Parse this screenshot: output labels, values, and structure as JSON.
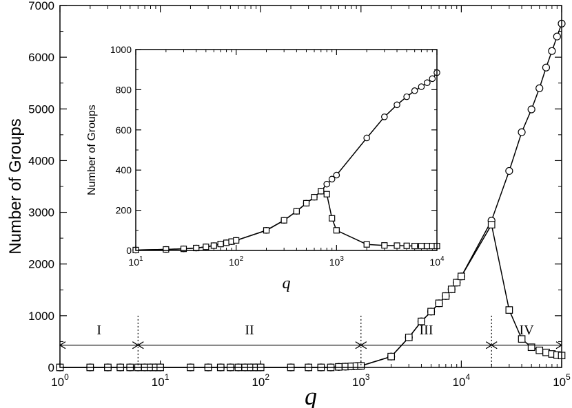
{
  "chart_data": [
    {
      "id": "main",
      "type": "line",
      "xscale": "log",
      "xlabel": "q",
      "ylabel": "Number of Groups",
      "xlim": [
        1,
        100000
      ],
      "ylim": [
        0,
        7000
      ],
      "xticks": [
        {
          "value": 1,
          "base": "10",
          "exp": "0"
        },
        {
          "value": 10,
          "base": "10",
          "exp": "1"
        },
        {
          "value": 100,
          "base": "10",
          "exp": "2"
        },
        {
          "value": 1000,
          "base": "10",
          "exp": "3"
        },
        {
          "value": 10000,
          "base": "10",
          "exp": "4"
        },
        {
          "value": 100000,
          "base": "10",
          "exp": "5"
        }
      ],
      "yticks": [
        "0",
        "1000",
        "2000",
        "3000",
        "4000",
        "5000",
        "6000",
        "7000"
      ],
      "series": [
        {
          "marker": "circle",
          "points": [
            [
              1,
              0
            ],
            [
              2,
              0
            ],
            [
              3,
              0
            ],
            [
              4,
              0
            ],
            [
              5,
              0
            ],
            [
              6,
              0
            ],
            [
              7,
              0
            ],
            [
              8,
              0
            ],
            [
              9,
              0
            ],
            [
              10,
              0
            ],
            [
              20,
              0
            ],
            [
              30,
              0
            ],
            [
              40,
              0
            ],
            [
              50,
              0
            ],
            [
              60,
              0
            ],
            [
              70,
              0
            ],
            [
              80,
              0
            ],
            [
              90,
              0
            ],
            [
              100,
              0
            ],
            [
              200,
              0
            ],
            [
              300,
              0
            ],
            [
              400,
              0
            ],
            [
              500,
              0
            ],
            [
              600,
              10
            ],
            [
              700,
              15
            ],
            [
              800,
              20
            ],
            [
              900,
              25
            ],
            [
              1000,
              30
            ],
            [
              2000,
              210
            ],
            [
              3000,
              580
            ],
            [
              4000,
              890
            ],
            [
              5000,
              1080
            ],
            [
              6000,
              1240
            ],
            [
              7000,
              1380
            ],
            [
              8000,
              1510
            ],
            [
              9000,
              1640
            ],
            [
              10000,
              1760
            ],
            [
              20000,
              2840
            ],
            [
              30000,
              3800
            ],
            [
              40000,
              4550
            ],
            [
              50000,
              4990
            ],
            [
              60000,
              5400
            ],
            [
              70000,
              5800
            ],
            [
              80000,
              6120
            ],
            [
              90000,
              6400
            ],
            [
              100000,
              6650
            ]
          ]
        },
        {
          "marker": "square",
          "points": [
            [
              1,
              0
            ],
            [
              2,
              0
            ],
            [
              3,
              0
            ],
            [
              4,
              0
            ],
            [
              5,
              0
            ],
            [
              6,
              0
            ],
            [
              7,
              0
            ],
            [
              8,
              0
            ],
            [
              9,
              0
            ],
            [
              10,
              0
            ],
            [
              20,
              0
            ],
            [
              30,
              0
            ],
            [
              40,
              0
            ],
            [
              50,
              0
            ],
            [
              60,
              0
            ],
            [
              70,
              0
            ],
            [
              80,
              0
            ],
            [
              90,
              0
            ],
            [
              100,
              0
            ],
            [
              200,
              0
            ],
            [
              300,
              0
            ],
            [
              400,
              0
            ],
            [
              500,
              0
            ],
            [
              600,
              10
            ],
            [
              700,
              15
            ],
            [
              800,
              20
            ],
            [
              900,
              25
            ],
            [
              1000,
              30
            ],
            [
              2000,
              210
            ],
            [
              3000,
              580
            ],
            [
              4000,
              890
            ],
            [
              5000,
              1080
            ],
            [
              6000,
              1240
            ],
            [
              7000,
              1380
            ],
            [
              8000,
              1510
            ],
            [
              9000,
              1640
            ],
            [
              10000,
              1760
            ],
            [
              20000,
              2760
            ],
            [
              30000,
              1110
            ],
            [
              40000,
              550
            ],
            [
              50000,
              390
            ],
            [
              60000,
              330
            ],
            [
              70000,
              290
            ],
            [
              80000,
              260
            ],
            [
              90000,
              240
            ],
            [
              100000,
              230
            ]
          ]
        }
      ],
      "regions": {
        "boundaries": [
          1,
          6,
          1000,
          20000,
          100000
        ],
        "labels": [
          "I",
          "II",
          "III",
          "IV"
        ],
        "arrow_y": 430,
        "label_y": 730
      }
    },
    {
      "id": "inset",
      "type": "line",
      "xscale": "log",
      "xlabel": "q",
      "ylabel": "Number of Groups",
      "xlim": [
        10,
        10000
      ],
      "ylim": [
        0,
        1000
      ],
      "xticks": [
        {
          "value": 10,
          "base": "10",
          "exp": "1"
        },
        {
          "value": 100,
          "base": "10",
          "exp": "2"
        },
        {
          "value": 1000,
          "base": "10",
          "exp": "3"
        },
        {
          "value": 10000,
          "base": "10",
          "exp": "4"
        }
      ],
      "yticks": [
        "0",
        "200",
        "400",
        "600",
        "800",
        "1000"
      ],
      "series": [
        {
          "marker": "circle",
          "points": [
            [
              10,
              2
            ],
            [
              20,
              5
            ],
            [
              30,
              8
            ],
            [
              40,
              12
            ],
            [
              50,
              18
            ],
            [
              60,
              24
            ],
            [
              70,
              32
            ],
            [
              80,
              38
            ],
            [
              90,
              44
            ],
            [
              100,
              50
            ],
            [
              200,
              100
            ],
            [
              300,
              150
            ],
            [
              400,
              195
            ],
            [
              500,
              235
            ],
            [
              600,
              265
            ],
            [
              700,
              295
            ],
            [
              800,
              330
            ],
            [
              900,
              355
            ],
            [
              1000,
              375
            ],
            [
              2000,
              560
            ],
            [
              3000,
              665
            ],
            [
              4000,
              725
            ],
            [
              5000,
              765
            ],
            [
              6000,
              795
            ],
            [
              7000,
              815
            ],
            [
              8000,
              835
            ],
            [
              9000,
              855
            ],
            [
              10000,
              885
            ]
          ]
        },
        {
          "marker": "square",
          "points": [
            [
              10,
              2
            ],
            [
              20,
              5
            ],
            [
              30,
              8
            ],
            [
              40,
              12
            ],
            [
              50,
              18
            ],
            [
              60,
              24
            ],
            [
              70,
              32
            ],
            [
              80,
              38
            ],
            [
              90,
              44
            ],
            [
              100,
              50
            ],
            [
              200,
              100
            ],
            [
              300,
              150
            ],
            [
              400,
              195
            ],
            [
              500,
              235
            ],
            [
              600,
              265
            ],
            [
              700,
              295
            ],
            [
              800,
              280
            ],
            [
              900,
              160
            ],
            [
              1000,
              100
            ],
            [
              2000,
              30
            ],
            [
              3000,
              25
            ],
            [
              4000,
              24
            ],
            [
              5000,
              23
            ],
            [
              6000,
              22
            ],
            [
              7000,
              22
            ],
            [
              8000,
              22
            ],
            [
              9000,
              22
            ],
            [
              10000,
              22
            ]
          ]
        }
      ]
    }
  ]
}
